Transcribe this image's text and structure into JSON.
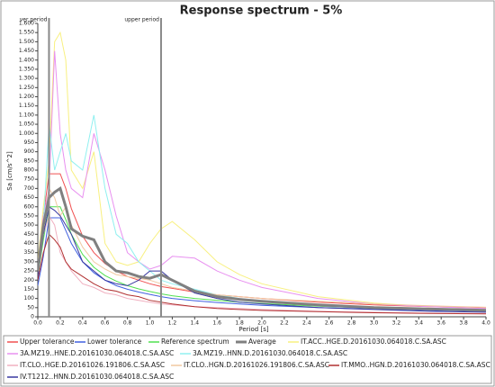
{
  "chart_data": {
    "type": "line",
    "title": "Response spectrum - 5%",
    "x_label": "Period [s]",
    "y_label": "Sa [cm/s^2]",
    "xlim": [
      0,
      4
    ],
    "ylim": [
      0,
      1600
    ],
    "xticks": [
      {
        "value": 0,
        "label": "0.0"
      },
      0.2,
      0.4,
      0.6,
      0.8,
      {
        "value": 1,
        "label": "1.0"
      },
      1.2,
      1.4,
      1.6,
      1.8,
      {
        "value": 2,
        "label": "2.0"
      },
      2.2,
      2.4,
      2.6,
      2.8,
      {
        "value": 3,
        "label": "3.0"
      },
      3.2,
      3.4,
      3.6,
      3.8,
      {
        "value": 4,
        "label": "4.0"
      }
    ],
    "yticks": [
      0,
      50,
      100,
      150,
      200,
      250,
      300,
      350,
      400,
      450,
      500,
      550,
      600,
      650,
      700,
      750,
      800,
      850,
      900,
      950,
      {
        "value": 1000,
        "label": "1.000"
      },
      {
        "value": 1050,
        "label": "1.050"
      },
      {
        "value": 1100,
        "label": "1.100"
      },
      {
        "value": 1150,
        "label": "1.150"
      },
      {
        "value": 1200,
        "label": "1.200"
      },
      {
        "value": 1250,
        "label": "1.250"
      },
      {
        "value": 1300,
        "label": "1.300"
      },
      {
        "value": 1350,
        "label": "1.350"
      },
      {
        "value": 1400,
        "label": "1.400"
      },
      {
        "value": 1450,
        "label": "1.450"
      },
      {
        "value": 1500,
        "label": "1.500"
      },
      {
        "value": 1550,
        "label": "1.550"
      },
      {
        "value": 1600,
        "label": "1.600"
      }
    ],
    "period_markers": [
      {
        "value": 0.1,
        "label": "ver period"
      },
      {
        "value": 1.1,
        "label": "upper period"
      }
    ],
    "x": [
      0,
      0.05,
      0.1,
      0.15,
      0.2,
      0.25,
      0.3,
      0.4,
      0.5,
      0.6,
      0.7,
      0.8,
      0.9,
      1.0,
      1.1,
      1.2,
      1.4,
      1.6,
      1.8,
      2.0,
      2.5,
      3.0,
      3.5,
      4.0
    ],
    "series": [
      {
        "name": "Upper tolerance",
        "color": "#f05050",
        "values": [
          300,
          550,
          780,
          780,
          780,
          700,
          590,
          440,
          350,
          290,
          250,
          220,
          200,
          180,
          165,
          155,
          135,
          120,
          110,
          100,
          80,
          65,
          55,
          48
        ]
      },
      {
        "name": "Lower tolerance",
        "color": "#4060e0",
        "values": [
          170,
          330,
          540,
          540,
          540,
          470,
          400,
          300,
          240,
          200,
          170,
          150,
          135,
          122,
          110,
          100,
          88,
          78,
          70,
          63,
          50,
          42,
          35,
          30
        ]
      },
      {
        "name": "Reference spectrum",
        "color": "#50e050",
        "values": [
          220,
          420,
          600,
          600,
          600,
          530,
          450,
          340,
          270,
          225,
          195,
          170,
          152,
          138,
          125,
          115,
          100,
          90,
          80,
          72,
          58,
          48,
          40,
          35
        ]
      },
      {
        "name": "Average",
        "color": "#808080",
        "values": [
          250,
          500,
          650,
          680,
          700,
          600,
          480,
          440,
          420,
          300,
          250,
          240,
          220,
          210,
          230,
          200,
          140,
          110,
          95,
          85,
          65,
          50,
          42,
          36
        ]
      },
      {
        "name": "IT.ACC..HGE.D.20161030.064018.C.SA.ASC",
        "color": "#f8f080",
        "values": [
          300,
          600,
          850,
          1500,
          1550,
          1400,
          800,
          700,
          900,
          400,
          300,
          280,
          300,
          400,
          480,
          520,
          420,
          300,
          230,
          180,
          110,
          75,
          55,
          45
        ]
      },
      {
        "name": "3A.MZ19..HNE.D.20161030.064018.C.SA.ASC",
        "color": "#e890f0",
        "values": [
          280,
          550,
          700,
          1450,
          1000,
          800,
          700,
          650,
          1000,
          800,
          550,
          350,
          300,
          260,
          280,
          330,
          320,
          250,
          200,
          160,
          100,
          70,
          55,
          45
        ]
      },
      {
        "name": "3A.MZ19..HNN.D.20161030.064018.C.SA.ASC",
        "color": "#90f0f0",
        "values": [
          260,
          500,
          1050,
          800,
          900,
          1000,
          850,
          800,
          1100,
          700,
          450,
          400,
          300,
          250,
          200,
          180,
          150,
          120,
          100,
          85,
          60,
          45,
          38,
          32
        ]
      },
      {
        "name": "IT.CLO..HGE.D.20161026.191806.C.SA.ASC",
        "color": "#f0b0c0",
        "values": [
          230,
          450,
          550,
          500,
          350,
          300,
          250,
          180,
          160,
          130,
          120,
          100,
          90,
          80,
          70,
          65,
          55,
          50,
          45,
          40,
          30,
          25,
          20,
          18
        ]
      },
      {
        "name": "IT.CLO..HGN.D.20161026.191806.C.SA.ASC",
        "color": "#f0c8a0",
        "values": [
          240,
          500,
          700,
          650,
          550,
          600,
          500,
          380,
          300,
          260,
          230,
          220,
          210,
          200,
          180,
          160,
          140,
          120,
          110,
          100,
          85,
          70,
          60,
          52
        ]
      },
      {
        "name": "IT.MMO..HGN.D.20161030.064018.C.SA.ASC",
        "color": "#b03030",
        "values": [
          200,
          350,
          450,
          420,
          380,
          300,
          260,
          220,
          180,
          150,
          140,
          120,
          110,
          90,
          80,
          70,
          55,
          45,
          40,
          35,
          28,
          22,
          18,
          16
        ]
      },
      {
        "name": "IV.T1212..HNN.D.20161030.064018.C.SA.ASC",
        "color": "#3838a0",
        "values": [
          220,
          450,
          600,
          580,
          550,
          500,
          450,
          300,
          250,
          200,
          180,
          170,
          200,
          250,
          250,
          200,
          130,
          100,
          80,
          70,
          50,
          40,
          30,
          25
        ]
      }
    ]
  }
}
